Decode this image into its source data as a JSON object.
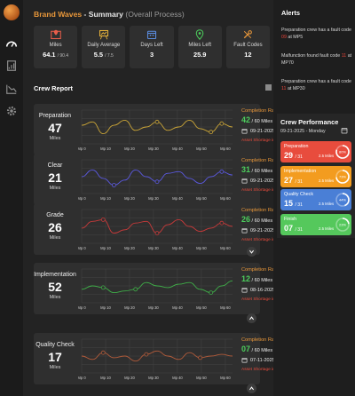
{
  "header": {
    "brand": "Brand Waves",
    "dash": " - Summary ",
    "subtitle": "(Overall Process)"
  },
  "kpis": [
    {
      "icon": "map-pin-icon",
      "label": "Miles",
      "value": "64.1",
      "value_small": "/ 90.4"
    },
    {
      "icon": "easel-chart-icon",
      "label": "Daily Average",
      "value": "5.5",
      "value_small": "/ 7.5"
    },
    {
      "icon": "calendar-icon",
      "label": "Days Left",
      "value": "3",
      "value_small": ""
    },
    {
      "icon": "location-pin-icon",
      "label": "Miles Left",
      "value": "25.9",
      "value_small": ""
    },
    {
      "icon": "wrench-icon",
      "label": "Fault Codes",
      "value": "12",
      "value_small": ""
    }
  ],
  "crew_report": {
    "title": "Crew Report",
    "x_ticks": [
      "Mp 0",
      "Mp 10",
      "Mp 20",
      "Mp 30",
      "Mp 40",
      "Mp 50",
      "Mp 60"
    ],
    "ratio_label": "Completion Ratio",
    "shortage_label": "Asset Shortage in MpS",
    "cards": [
      {
        "name": "Preparation",
        "value": "47",
        "unit": "Miles",
        "ratio": "42",
        "ratio_of": "/ 60 Miles",
        "date": "09-21-2025",
        "color": "#c9a437"
      },
      {
        "name": "Clear",
        "value": "21",
        "unit": "Miles",
        "ratio": "31",
        "ratio_of": "/ 60 Miles",
        "date": "09-21-2025",
        "color": "#5b59e0"
      },
      {
        "name": "Grade",
        "value": "26",
        "unit": "Miles",
        "ratio": "26",
        "ratio_of": "/ 60 Miles",
        "date": "09-21-2025",
        "color": "#c93a3a"
      },
      {
        "name": "Implementation",
        "value": "52",
        "unit": "Miles",
        "ratio": "12",
        "ratio_of": "/ 60 Miles",
        "date": "08-16-2025",
        "color": "#3fae48"
      },
      {
        "name": "Quality Check",
        "value": "17",
        "unit": "Miles",
        "ratio": "07",
        "ratio_of": "/ 60 Miles",
        "date": "07-11-2025",
        "color": "#b05a3a"
      }
    ]
  },
  "alerts": {
    "title": "Alerts",
    "items": [
      {
        "pre": "Preparation crew has a fault code ",
        "code": "09",
        "post": " at MP5"
      },
      {
        "pre": "Malfunction found  fault code ",
        "code": "11",
        "post": " at MP70"
      },
      {
        "pre": "Preparation crew has a fault code ",
        "code": "11",
        "post": " at MP30"
      }
    ]
  },
  "crew_performance": {
    "title": "Crew Performance",
    "date": "09-21-2025 - Monday",
    "items": [
      {
        "name": "Preparation",
        "value": "29",
        "of": "/ 31",
        "miles": "2.5 Miles",
        "pct": "80%",
        "fraction": 0.8,
        "color": "#e84c3d"
      },
      {
        "name": "Implementation",
        "value": "27",
        "of": "/ 31",
        "miles": "2.5 Miles",
        "pct": "73%",
        "fraction": 0.73,
        "color": "#f39c1f"
      },
      {
        "name": "Quality Check",
        "value": "15",
        "of": "/ 31",
        "miles": "2.5 Miles",
        "pct": "44%",
        "fraction": 0.44,
        "color": "#4a7fd6"
      },
      {
        "name": "Finish",
        "value": "07",
        "of": "/ 31",
        "miles": "2.5 Miles",
        "pct": "23%",
        "fraction": 0.23,
        "color": "#55c85c"
      }
    ]
  }
}
